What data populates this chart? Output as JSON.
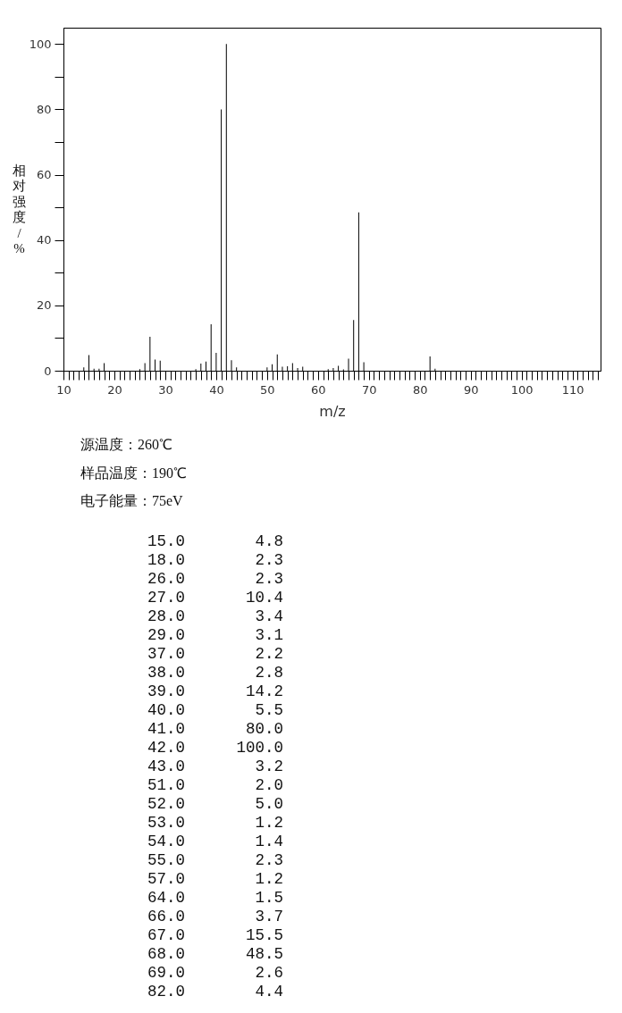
{
  "chart_data": [
    {
      "type": "bar",
      "xlabel": "m/z",
      "ylabel": "相对强度/%",
      "color": "#000000",
      "x": [
        14,
        15,
        16,
        17,
        18,
        25,
        26,
        27,
        28,
        29,
        36,
        37,
        38,
        39,
        40,
        41,
        42,
        43,
        44,
        50,
        51,
        52,
        53,
        54,
        55,
        56,
        57,
        62,
        63,
        64,
        65,
        66,
        67,
        68,
        69,
        82,
        83
      ],
      "values": [
        1.0,
        4.8,
        0.6,
        0.6,
        2.3,
        0.5,
        2.3,
        10.4,
        3.4,
        3.1,
        0.5,
        2.2,
        2.8,
        14.2,
        5.5,
        80.0,
        100.0,
        3.2,
        1.0,
        1.0,
        2.0,
        5.0,
        1.2,
        1.4,
        2.3,
        0.8,
        1.2,
        0.5,
        0.8,
        1.5,
        0.4,
        3.7,
        15.5,
        48.5,
        2.6,
        4.4,
        0.6
      ],
      "xlim": [
        10,
        115.5
      ],
      "ylim": [
        0,
        105
      ],
      "xticks": [
        10,
        {
          "value": 11,
          "label": null
        },
        {
          "value": 12,
          "label": null
        },
        {
          "value": 13,
          "label": null
        },
        {
          "value": 14,
          "label": null
        },
        {
          "value": 15,
          "label": null
        },
        {
          "value": 16,
          "label": null
        },
        {
          "value": 17,
          "label": null
        },
        {
          "value": 18,
          "label": null
        },
        {
          "value": 19,
          "label": null
        },
        20,
        {
          "value": 21,
          "label": null
        },
        {
          "value": 22,
          "label": null
        },
        {
          "value": 23,
          "label": null
        },
        {
          "value": 24,
          "label": null
        },
        {
          "value": 25,
          "label": null
        },
        {
          "value": 26,
          "label": null
        },
        {
          "value": 27,
          "label": null
        },
        {
          "value": 28,
          "label": null
        },
        {
          "value": 29,
          "label": null
        },
        30,
        {
          "value": 31,
          "label": null
        },
        {
          "value": 32,
          "label": null
        },
        {
          "value": 33,
          "label": null
        },
        {
          "value": 34,
          "label": null
        },
        {
          "value": 35,
          "label": null
        },
        {
          "value": 36,
          "label": null
        },
        {
          "value": 37,
          "label": null
        },
        {
          "value": 38,
          "label": null
        },
        {
          "value": 39,
          "label": null
        },
        40,
        {
          "value": 41,
          "label": null
        },
        {
          "value": 42,
          "label": null
        },
        {
          "value": 43,
          "label": null
        },
        {
          "value": 44,
          "label": null
        },
        {
          "value": 45,
          "label": null
        },
        {
          "value": 46,
          "label": null
        },
        {
          "value": 47,
          "label": null
        },
        {
          "value": 48,
          "label": null
        },
        {
          "value": 49,
          "label": null
        },
        50,
        {
          "value": 51,
          "label": null
        },
        {
          "value": 52,
          "label": null
        },
        {
          "value": 53,
          "label": null
        },
        {
          "value": 54,
          "label": null
        },
        {
          "value": 55,
          "label": null
        },
        {
          "value": 56,
          "label": null
        },
        {
          "value": 57,
          "label": null
        },
        {
          "value": 58,
          "label": null
        },
        {
          "value": 59,
          "label": null
        },
        60,
        {
          "value": 61,
          "label": null
        },
        {
          "value": 62,
          "label": null
        },
        {
          "value": 63,
          "label": null
        },
        {
          "value": 64,
          "label": null
        },
        {
          "value": 65,
          "label": null
        },
        {
          "value": 66,
          "label": null
        },
        {
          "value": 67,
          "label": null
        },
        {
          "value": 68,
          "label": null
        },
        {
          "value": 69,
          "label": null
        },
        70,
        {
          "value": 71,
          "label": null
        },
        {
          "value": 72,
          "label": null
        },
        {
          "value": 73,
          "label": null
        },
        {
          "value": 74,
          "label": null
        },
        {
          "value": 75,
          "label": null
        },
        {
          "value": 76,
          "label": null
        },
        {
          "value": 77,
          "label": null
        },
        {
          "value": 78,
          "label": null
        },
        {
          "value": 79,
          "label": null
        },
        80,
        {
          "value": 81,
          "label": null
        },
        {
          "value": 82,
          "label": null
        },
        {
          "value": 83,
          "label": null
        },
        {
          "value": 84,
          "label": null
        },
        {
          "value": 85,
          "label": null
        },
        {
          "value": 86,
          "label": null
        },
        {
          "value": 87,
          "label": null
        },
        {
          "value": 88,
          "label": null
        },
        {
          "value": 89,
          "label": null
        },
        90,
        {
          "value": 91,
          "label": null
        },
        {
          "value": 92,
          "label": null
        },
        {
          "value": 93,
          "label": null
        },
        {
          "value": 94,
          "label": null
        },
        {
          "value": 95,
          "label": null
        },
        {
          "value": 96,
          "label": null
        },
        {
          "value": 97,
          "label": null
        },
        {
          "value": 98,
          "label": null
        },
        {
          "value": 99,
          "label": null
        },
        100,
        {
          "value": 101,
          "label": null
        },
        {
          "value": 102,
          "label": null
        },
        {
          "value": 103,
          "label": null
        },
        {
          "value": 104,
          "label": null
        },
        {
          "value": 105,
          "label": null
        },
        {
          "value": 106,
          "label": null
        },
        {
          "value": 107,
          "label": null
        },
        {
          "value": 108,
          "label": null
        },
        {
          "value": 109,
          "label": null
        },
        110,
        {
          "value": 111,
          "label": null
        },
        {
          "value": 112,
          "label": null
        },
        {
          "value": 113,
          "label": null
        },
        {
          "value": 114,
          "label": null
        },
        {
          "value": 115,
          "label": null
        }
      ],
      "yticks": [
        0,
        {
          "value": 10,
          "label": null
        },
        20,
        {
          "value": 30,
          "label": null
        },
        40,
        {
          "value": 50,
          "label": null
        },
        60,
        {
          "value": 70,
          "label": null
        },
        80,
        {
          "value": 90,
          "label": null
        },
        100
      ],
      "annotations": [
        "源温度：260℃",
        "样品温度：190℃",
        "电子能量：75eV"
      ]
    },
    {
      "type": "other",
      "annotations": [
        "15.0",
        "4.8",
        "18.0",
        "2.3",
        "26.0",
        "2.3",
        "27.0",
        "10.4",
        "28.0",
        "3.4",
        "29.0",
        "3.1",
        "37.0",
        "2.2",
        "38.0",
        "2.8",
        "39.0",
        "14.2",
        "40.0",
        "5.5",
        "41.0",
        "80.0",
        "42.0",
        "100.0",
        "43.0",
        "3.2",
        "51.0",
        "2.0",
        "52.0",
        "5.0",
        "53.0",
        "1.2",
        "54.0",
        "1.4",
        "55.0",
        "2.3",
        "57.0",
        "1.2",
        "64.0",
        "1.5",
        "66.0",
        "3.7",
        "67.0",
        "15.5",
        "68.0",
        "48.5",
        "69.0",
        "2.6",
        "82.0",
        "4.4"
      ]
    }
  ]
}
